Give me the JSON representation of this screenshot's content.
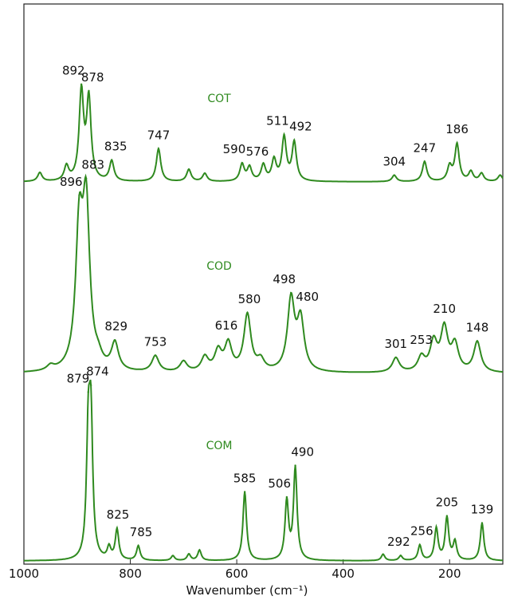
{
  "chart_data": {
    "type": "line",
    "x_label": "Wavenumber (cm⁻¹)",
    "xlim": [
      1000,
      100
    ],
    "xticks": [
      1000,
      800,
      600,
      400,
      200
    ],
    "series": [
      {
        "name": "COT",
        "color": "#2f8a1f",
        "x": [
          892,
          878,
          835,
          747,
          590,
          576,
          511,
          492,
          304,
          247,
          186
        ],
        "values": [
          110,
          101,
          25,
          41,
          21,
          17,
          54,
          48,
          8,
          25,
          46
        ],
        "minor_x": [
          970,
          920,
          690,
          660,
          550,
          530,
          200,
          160,
          140,
          105
        ],
        "minor_values": [
          11,
          18,
          15,
          10,
          20,
          26,
          18,
          12,
          10,
          8
        ]
      },
      {
        "name": "COD",
        "color": "#2f8a1f",
        "x": [
          896,
          883,
          829,
          753,
          616,
          580,
          498,
          480,
          301,
          253,
          210,
          148
        ],
        "values": [
          168,
          196,
          34,
          20,
          34,
          71,
          89,
          63,
          18,
          18,
          53,
          38
        ],
        "minor_x": [
          950,
          860,
          700,
          660,
          635,
          555,
          230,
          190
        ],
        "minor_values": [
          6,
          10,
          13,
          18,
          25,
          13,
          36,
          33
        ]
      },
      {
        "name": "COM",
        "color": "#2f8a1f",
        "x": [
          879,
          874,
          825,
          785,
          585,
          506,
          490,
          292,
          256,
          205,
          139
        ],
        "values": [
          148,
          162,
          38,
          18,
          86,
          73,
          115,
          6,
          19,
          53,
          47
        ],
        "minor_x": [
          840,
          720,
          690,
          670,
          325,
          225,
          190
        ],
        "minor_values": [
          15,
          6,
          8,
          13,
          8,
          40,
          23
        ]
      }
    ]
  }
}
